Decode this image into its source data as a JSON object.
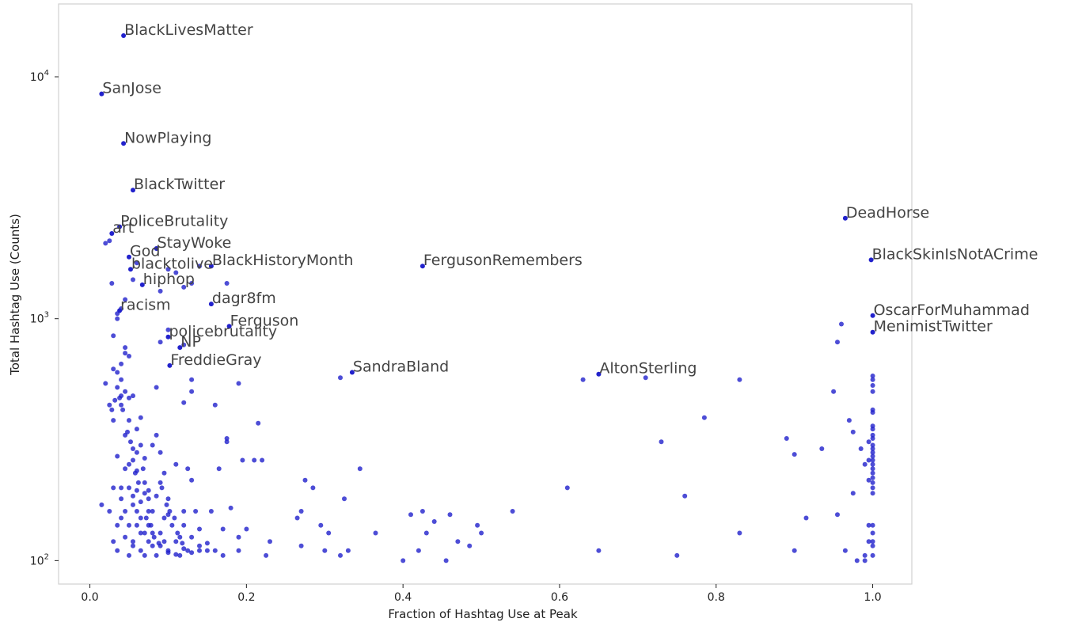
{
  "chart_data": {
    "type": "scatter",
    "title": "",
    "xlabel": "Fraction of Hashtag Use at Peak",
    "ylabel": "Total Hashtag Use (Counts)",
    "xscale": "linear",
    "yscale": "log",
    "xlim": [
      -0.04,
      1.05
    ],
    "ylim": [
      80,
      20000
    ],
    "grid": false,
    "point_color": "#2020cc",
    "x_ticks": [
      {
        "value": 0.0,
        "label": "0.0"
      },
      {
        "value": 0.2,
        "label": "0.2"
      },
      {
        "value": 0.4,
        "label": "0.4"
      },
      {
        "value": 0.6,
        "label": "0.6"
      },
      {
        "value": 0.8,
        "label": "0.8"
      },
      {
        "value": 1.0,
        "label": "1.0"
      }
    ],
    "y_ticks": [
      {
        "value": 100,
        "base": "10",
        "exp": "2"
      },
      {
        "value": 1000,
        "base": "10",
        "exp": "3"
      },
      {
        "value": 10000,
        "base": "10",
        "exp": "4"
      }
    ],
    "annotations": [
      {
        "label": "BlackLivesMatter",
        "x": 0.043,
        "y": 14800
      },
      {
        "label": "SanJose",
        "x": 0.015,
        "y": 8500
      },
      {
        "label": "NowPlaying",
        "x": 0.043,
        "y": 5300
      },
      {
        "label": "BlackTwitter",
        "x": 0.055,
        "y": 3400
      },
      {
        "label": "PoliceBrutality",
        "x": 0.038,
        "y": 2400
      },
      {
        "label": "art",
        "x": 0.028,
        "y": 2250
      },
      {
        "label": "God",
        "x": 0.05,
        "y": 1800
      },
      {
        "label": "StayWoke",
        "x": 0.085,
        "y": 1950
      },
      {
        "label": "blacktolive",
        "x": 0.052,
        "y": 1600
      },
      {
        "label": "BlackHistoryMonth",
        "x": 0.155,
        "y": 1650
      },
      {
        "label": "FergusonRemembers",
        "x": 0.425,
        "y": 1650
      },
      {
        "label": "hiphop",
        "x": 0.067,
        "y": 1380
      },
      {
        "label": "dagr8fm",
        "x": 0.155,
        "y": 1150
      },
      {
        "label": "racism",
        "x": 0.038,
        "y": 1080
      },
      {
        "label": "Ferguson",
        "x": 0.178,
        "y": 930
      },
      {
        "label": "policebrutality",
        "x": 0.1,
        "y": 840
      },
      {
        "label": "NP",
        "x": 0.115,
        "y": 760
      },
      {
        "label": "FreddieGray",
        "x": 0.102,
        "y": 640
      },
      {
        "label": "SandraBland",
        "x": 0.335,
        "y": 600
      },
      {
        "label": "AltonSterling",
        "x": 0.65,
        "y": 590
      },
      {
        "label": "DeadHorse",
        "x": 0.965,
        "y": 2600
      },
      {
        "label": "BlackSkinIsNotACrime",
        "x": 0.998,
        "y": 1750
      },
      {
        "label": "OscarForMuhammad",
        "x": 1.0,
        "y": 1030
      },
      {
        "label": "MenimistTwitter",
        "x": 1.0,
        "y": 880
      }
    ],
    "points": [
      [
        0.02,
        2050
      ],
      [
        0.025,
        2100
      ],
      [
        0.035,
        1050
      ],
      [
        0.035,
        1000
      ],
      [
        0.04,
        1100
      ],
      [
        0.028,
        1400
      ],
      [
        0.03,
        850
      ],
      [
        0.045,
        1200
      ],
      [
        0.06,
        1700
      ],
      [
        0.055,
        1450
      ],
      [
        0.09,
        1300
      ],
      [
        0.12,
        1350
      ],
      [
        0.13,
        1400
      ],
      [
        0.1,
        1600
      ],
      [
        0.11,
        1550
      ],
      [
        0.14,
        1650
      ],
      [
        0.175,
        1400
      ],
      [
        0.09,
        800
      ],
      [
        0.1,
        900
      ],
      [
        0.12,
        780
      ],
      [
        0.13,
        560
      ],
      [
        0.085,
        520
      ],
      [
        0.12,
        450
      ],
      [
        0.13,
        500
      ],
      [
        0.16,
        440
      ],
      [
        0.19,
        540
      ],
      [
        0.215,
        370
      ],
      [
        0.32,
        570
      ],
      [
        0.63,
        560
      ],
      [
        0.71,
        570
      ],
      [
        0.83,
        560
      ],
      [
        0.96,
        950
      ],
      [
        0.955,
        800
      ],
      [
        0.95,
        500
      ],
      [
        0.97,
        380
      ],
      [
        0.975,
        340
      ],
      [
        0.985,
        290
      ],
      [
        0.99,
        250
      ],
      [
        0.975,
        190
      ],
      [
        0.955,
        155
      ],
      [
        0.965,
        110
      ],
      [
        0.98,
        100
      ],
      [
        0.99,
        100
      ],
      [
        0.89,
        320
      ],
      [
        0.9,
        275
      ],
      [
        0.935,
        290
      ],
      [
        0.915,
        150
      ],
      [
        0.9,
        110
      ],
      [
        0.83,
        130
      ],
      [
        0.785,
        390
      ],
      [
        0.73,
        310
      ],
      [
        0.76,
        185
      ],
      [
        0.75,
        105
      ],
      [
        0.65,
        110
      ],
      [
        0.61,
        200
      ],
      [
        0.54,
        160
      ],
      [
        0.5,
        130
      ],
      [
        0.495,
        140
      ],
      [
        0.485,
        115
      ],
      [
        0.47,
        120
      ],
      [
        0.46,
        155
      ],
      [
        0.455,
        100
      ],
      [
        0.44,
        145
      ],
      [
        0.43,
        130
      ],
      [
        0.425,
        160
      ],
      [
        0.41,
        155
      ],
      [
        0.42,
        110
      ],
      [
        0.4,
        100
      ],
      [
        0.365,
        130
      ],
      [
        0.345,
        240
      ],
      [
        0.33,
        110
      ],
      [
        0.325,
        180
      ],
      [
        0.32,
        105
      ],
      [
        0.305,
        130
      ],
      [
        0.295,
        140
      ],
      [
        0.3,
        110
      ],
      [
        0.285,
        200
      ],
      [
        0.275,
        215
      ],
      [
        0.27,
        160
      ],
      [
        0.265,
        150
      ],
      [
        0.27,
        115
      ],
      [
        0.23,
        120
      ],
      [
        0.225,
        105
      ],
      [
        0.22,
        260
      ],
      [
        0.21,
        260
      ],
      [
        0.195,
        260
      ],
      [
        0.2,
        135
      ],
      [
        0.19,
        125
      ],
      [
        0.19,
        110
      ],
      [
        0.18,
        165
      ],
      [
        0.175,
        310
      ],
      [
        0.175,
        320
      ],
      [
        0.17,
        135
      ],
      [
        0.17,
        105
      ],
      [
        0.16,
        110
      ],
      [
        0.155,
        160
      ],
      [
        0.165,
        240
      ],
      [
        0.15,
        110
      ],
      [
        0.14,
        135
      ],
      [
        0.135,
        160
      ],
      [
        0.13,
        215
      ],
      [
        0.125,
        240
      ],
      [
        0.12,
        140
      ],
      [
        0.125,
        110
      ],
      [
        0.115,
        125
      ],
      [
        0.11,
        250
      ],
      [
        0.1,
        180
      ],
      [
        0.1,
        155
      ],
      [
        0.095,
        120
      ],
      [
        0.09,
        210
      ],
      [
        0.085,
        185
      ],
      [
        0.08,
        160
      ],
      [
        0.075,
        140
      ],
      [
        0.07,
        105
      ],
      [
        0.065,
        130
      ],
      [
        0.06,
        160
      ],
      [
        0.055,
        185
      ],
      [
        0.05,
        200
      ],
      [
        0.045,
        240
      ],
      [
        0.04,
        200
      ],
      [
        0.035,
        270
      ],
      [
        0.03,
        380
      ],
      [
        0.025,
        440
      ],
      [
        0.02,
        540
      ],
      [
        0.015,
        170
      ],
      [
        0.025,
        160
      ],
      [
        0.03,
        120
      ],
      [
        0.035,
        110
      ],
      [
        0.04,
        150
      ],
      [
        0.045,
        125
      ],
      [
        0.05,
        105
      ],
      [
        0.055,
        115
      ],
      [
        0.06,
        140
      ],
      [
        0.065,
        175
      ],
      [
        0.07,
        210
      ],
      [
        0.075,
        195
      ],
      [
        0.08,
        115
      ],
      [
        0.085,
        105
      ],
      [
        0.09,
        130
      ],
      [
        0.095,
        150
      ],
      [
        0.1,
        110
      ],
      [
        0.105,
        140
      ],
      [
        0.11,
        120
      ],
      [
        0.115,
        105
      ],
      [
        0.12,
        160
      ],
      [
        0.13,
        125
      ],
      [
        0.14,
        115
      ],
      [
        0.06,
        350
      ],
      [
        0.065,
        390
      ],
      [
        0.07,
        265
      ],
      [
        0.075,
        180
      ],
      [
        0.08,
        300
      ],
      [
        0.085,
        330
      ],
      [
        0.09,
        280
      ],
      [
        0.095,
        230
      ],
      [
        0.05,
        470
      ],
      [
        0.055,
        480
      ],
      [
        0.045,
        500
      ],
      [
        0.04,
        560
      ],
      [
        0.035,
        600
      ],
      [
        0.045,
        720
      ],
      [
        0.04,
        650
      ],
      [
        0.05,
        380
      ],
      [
        0.055,
        290
      ],
      [
        0.06,
        280
      ],
      [
        0.04,
        440
      ],
      [
        0.045,
        330
      ],
      [
        0.05,
        250
      ],
      [
        0.06,
        235
      ],
      [
        0.065,
        300
      ],
      [
        0.055,
        260
      ],
      [
        0.07,
        190
      ],
      [
        0.075,
        160
      ],
      [
        0.08,
        130
      ],
      [
        0.09,
        115
      ],
      [
        0.1,
        108
      ],
      [
        0.11,
        106
      ],
      [
        0.12,
        112
      ],
      [
        0.13,
        108
      ],
      [
        0.14,
        110
      ],
      [
        0.15,
        118
      ],
      [
        0.045,
        160
      ],
      [
        0.05,
        140
      ],
      [
        0.055,
        120
      ],
      [
        0.065,
        110
      ],
      [
        0.04,
        180
      ],
      [
        0.035,
        140
      ],
      [
        0.03,
        200
      ],
      [
        0.028,
        420
      ],
      [
        0.032,
        460
      ],
      [
        0.038,
        470
      ],
      [
        0.042,
        420
      ],
      [
        0.048,
        340
      ],
      [
        0.052,
        310
      ],
      [
        0.058,
        230
      ],
      [
        0.062,
        210
      ],
      [
        0.068,
        240
      ],
      [
        0.072,
        150
      ],
      [
        0.078,
        140
      ],
      [
        0.082,
        125
      ],
      [
        0.088,
        118
      ],
      [
        0.092,
        200
      ],
      [
        0.098,
        170
      ],
      [
        0.102,
        160
      ],
      [
        0.108,
        150
      ],
      [
        0.112,
        130
      ],
      [
        0.118,
        118
      ],
      [
        0.045,
        760
      ],
      [
        0.05,
        700
      ],
      [
        0.03,
        620
      ],
      [
        0.035,
        520
      ],
      [
        0.04,
        480
      ],
      [
        0.055,
        170
      ],
      [
        0.06,
        195
      ],
      [
        0.065,
        150
      ],
      [
        0.07,
        130
      ],
      [
        0.075,
        120
      ],
      [
        1.0,
        580
      ],
      [
        1.0,
        560
      ],
      [
        1.0,
        530
      ],
      [
        1.0,
        500
      ],
      [
        1.0,
        420
      ],
      [
        1.0,
        410
      ],
      [
        1.0,
        360
      ],
      [
        1.0,
        350
      ],
      [
        1.0,
        330
      ],
      [
        1.0,
        320
      ],
      [
        1.0,
        300
      ],
      [
        1.0,
        290
      ],
      [
        1.0,
        280
      ],
      [
        1.0,
        270
      ],
      [
        1.0,
        260
      ],
      [
        1.0,
        250
      ],
      [
        1.0,
        240
      ],
      [
        1.0,
        230
      ],
      [
        1.0,
        220
      ],
      [
        1.0,
        210
      ],
      [
        1.0,
        200
      ],
      [
        1.0,
        190
      ],
      [
        1.0,
        140
      ],
      [
        1.0,
        130
      ],
      [
        1.0,
        120
      ],
      [
        1.0,
        115
      ],
      [
        1.0,
        105
      ],
      [
        0.995,
        310
      ],
      [
        0.995,
        260
      ],
      [
        0.995,
        215
      ],
      [
        0.995,
        140
      ],
      [
        0.995,
        120
      ],
      [
        0.99,
        105
      ]
    ]
  }
}
